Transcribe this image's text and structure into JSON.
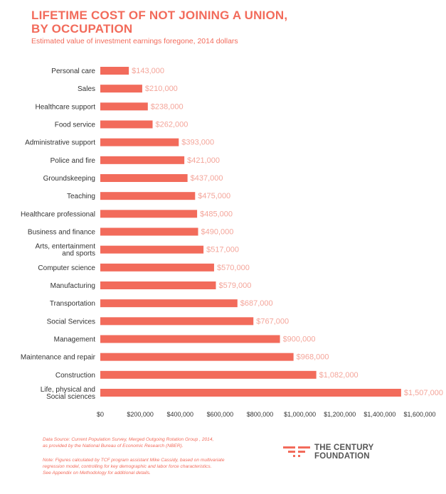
{
  "header": {
    "title_line1": "LIFETIME COST OF NOT JOINING A UNION,",
    "title_line2": "BY OCCUPATION",
    "subtitle": "Estimated value of investment earnings foregone, 2014 dollars"
  },
  "chart_data": {
    "type": "bar",
    "orientation": "horizontal",
    "categories": [
      "Personal care",
      "Sales",
      "Healthcare support",
      "Food service",
      "Administrative support",
      "Police and fire",
      "Groundskeeping",
      "Teaching",
      "Healthcare professional",
      "Business and finance",
      "Arts, entertainment and sports",
      "Computer science",
      "Manufacturing",
      "Transportation",
      "Social Services",
      "Management",
      "Maintenance and repair",
      "Construction",
      "Life, physical and Social sciences"
    ],
    "category_lines": [
      [
        "Personal care"
      ],
      [
        "Sales"
      ],
      [
        "Healthcare support"
      ],
      [
        "Food service"
      ],
      [
        "Administrative support"
      ],
      [
        "Police and fire"
      ],
      [
        "Groundskeeping"
      ],
      [
        "Teaching"
      ],
      [
        "Healthcare professional"
      ],
      [
        "Business and finance"
      ],
      [
        "Arts, entertainment",
        "and sports"
      ],
      [
        "Computer science"
      ],
      [
        "Manufacturing"
      ],
      [
        "Transportation"
      ],
      [
        "Social Services"
      ],
      [
        "Management"
      ],
      [
        "Maintenance and repair"
      ],
      [
        "Construction"
      ],
      [
        "Life, physical and",
        "Social sciences"
      ]
    ],
    "values": [
      143000,
      210000,
      238000,
      262000,
      393000,
      421000,
      437000,
      475000,
      485000,
      490000,
      517000,
      570000,
      579000,
      687000,
      767000,
      900000,
      968000,
      1082000,
      1507000
    ],
    "value_labels": [
      "$143,000",
      "$210,000",
      "$238,000",
      "$262,000",
      "$393,000",
      "$421,000",
      "$437,000",
      "$475,000",
      "$485,000",
      "$490,000",
      "$517,000",
      "$570,000",
      "$579,000",
      "$687,000",
      "$767,000",
      "$900,000",
      "$968,000",
      "$1,082,000",
      "$1,507,000"
    ],
    "xlim": [
      0,
      1600000
    ],
    "xticks": [
      0,
      200000,
      400000,
      600000,
      800000,
      1000000,
      1200000,
      1400000,
      1600000
    ],
    "xtick_labels": [
      "$0",
      "$200,000",
      "$400,000",
      "$600,000",
      "$800,000",
      "$1,000,000",
      "$1,200,000",
      "$1,400,000",
      "$1,600,000"
    ],
    "bar_color": "#f26b5b",
    "label_color": "#f4a59a",
    "grid": false
  },
  "footnotes": {
    "source_lines": [
      "Data Source: Current Population Survey, Merged Outgoing Rotation Group , 2014,",
      " as provided by the National Bureau of Economic Research (NBER)."
    ],
    "note_lines": [
      "Note: Figures calculated by TCF program assistant Mike Cassidy, based on multivariate",
      "regression model, controlling for key demographic and labor force characteristics.",
      "See Appendix on Methodology for additional details."
    ]
  },
  "logo": {
    "line1": "THE CENTURY",
    "line2": "FOUNDATION",
    "color": "#f26b5b"
  }
}
